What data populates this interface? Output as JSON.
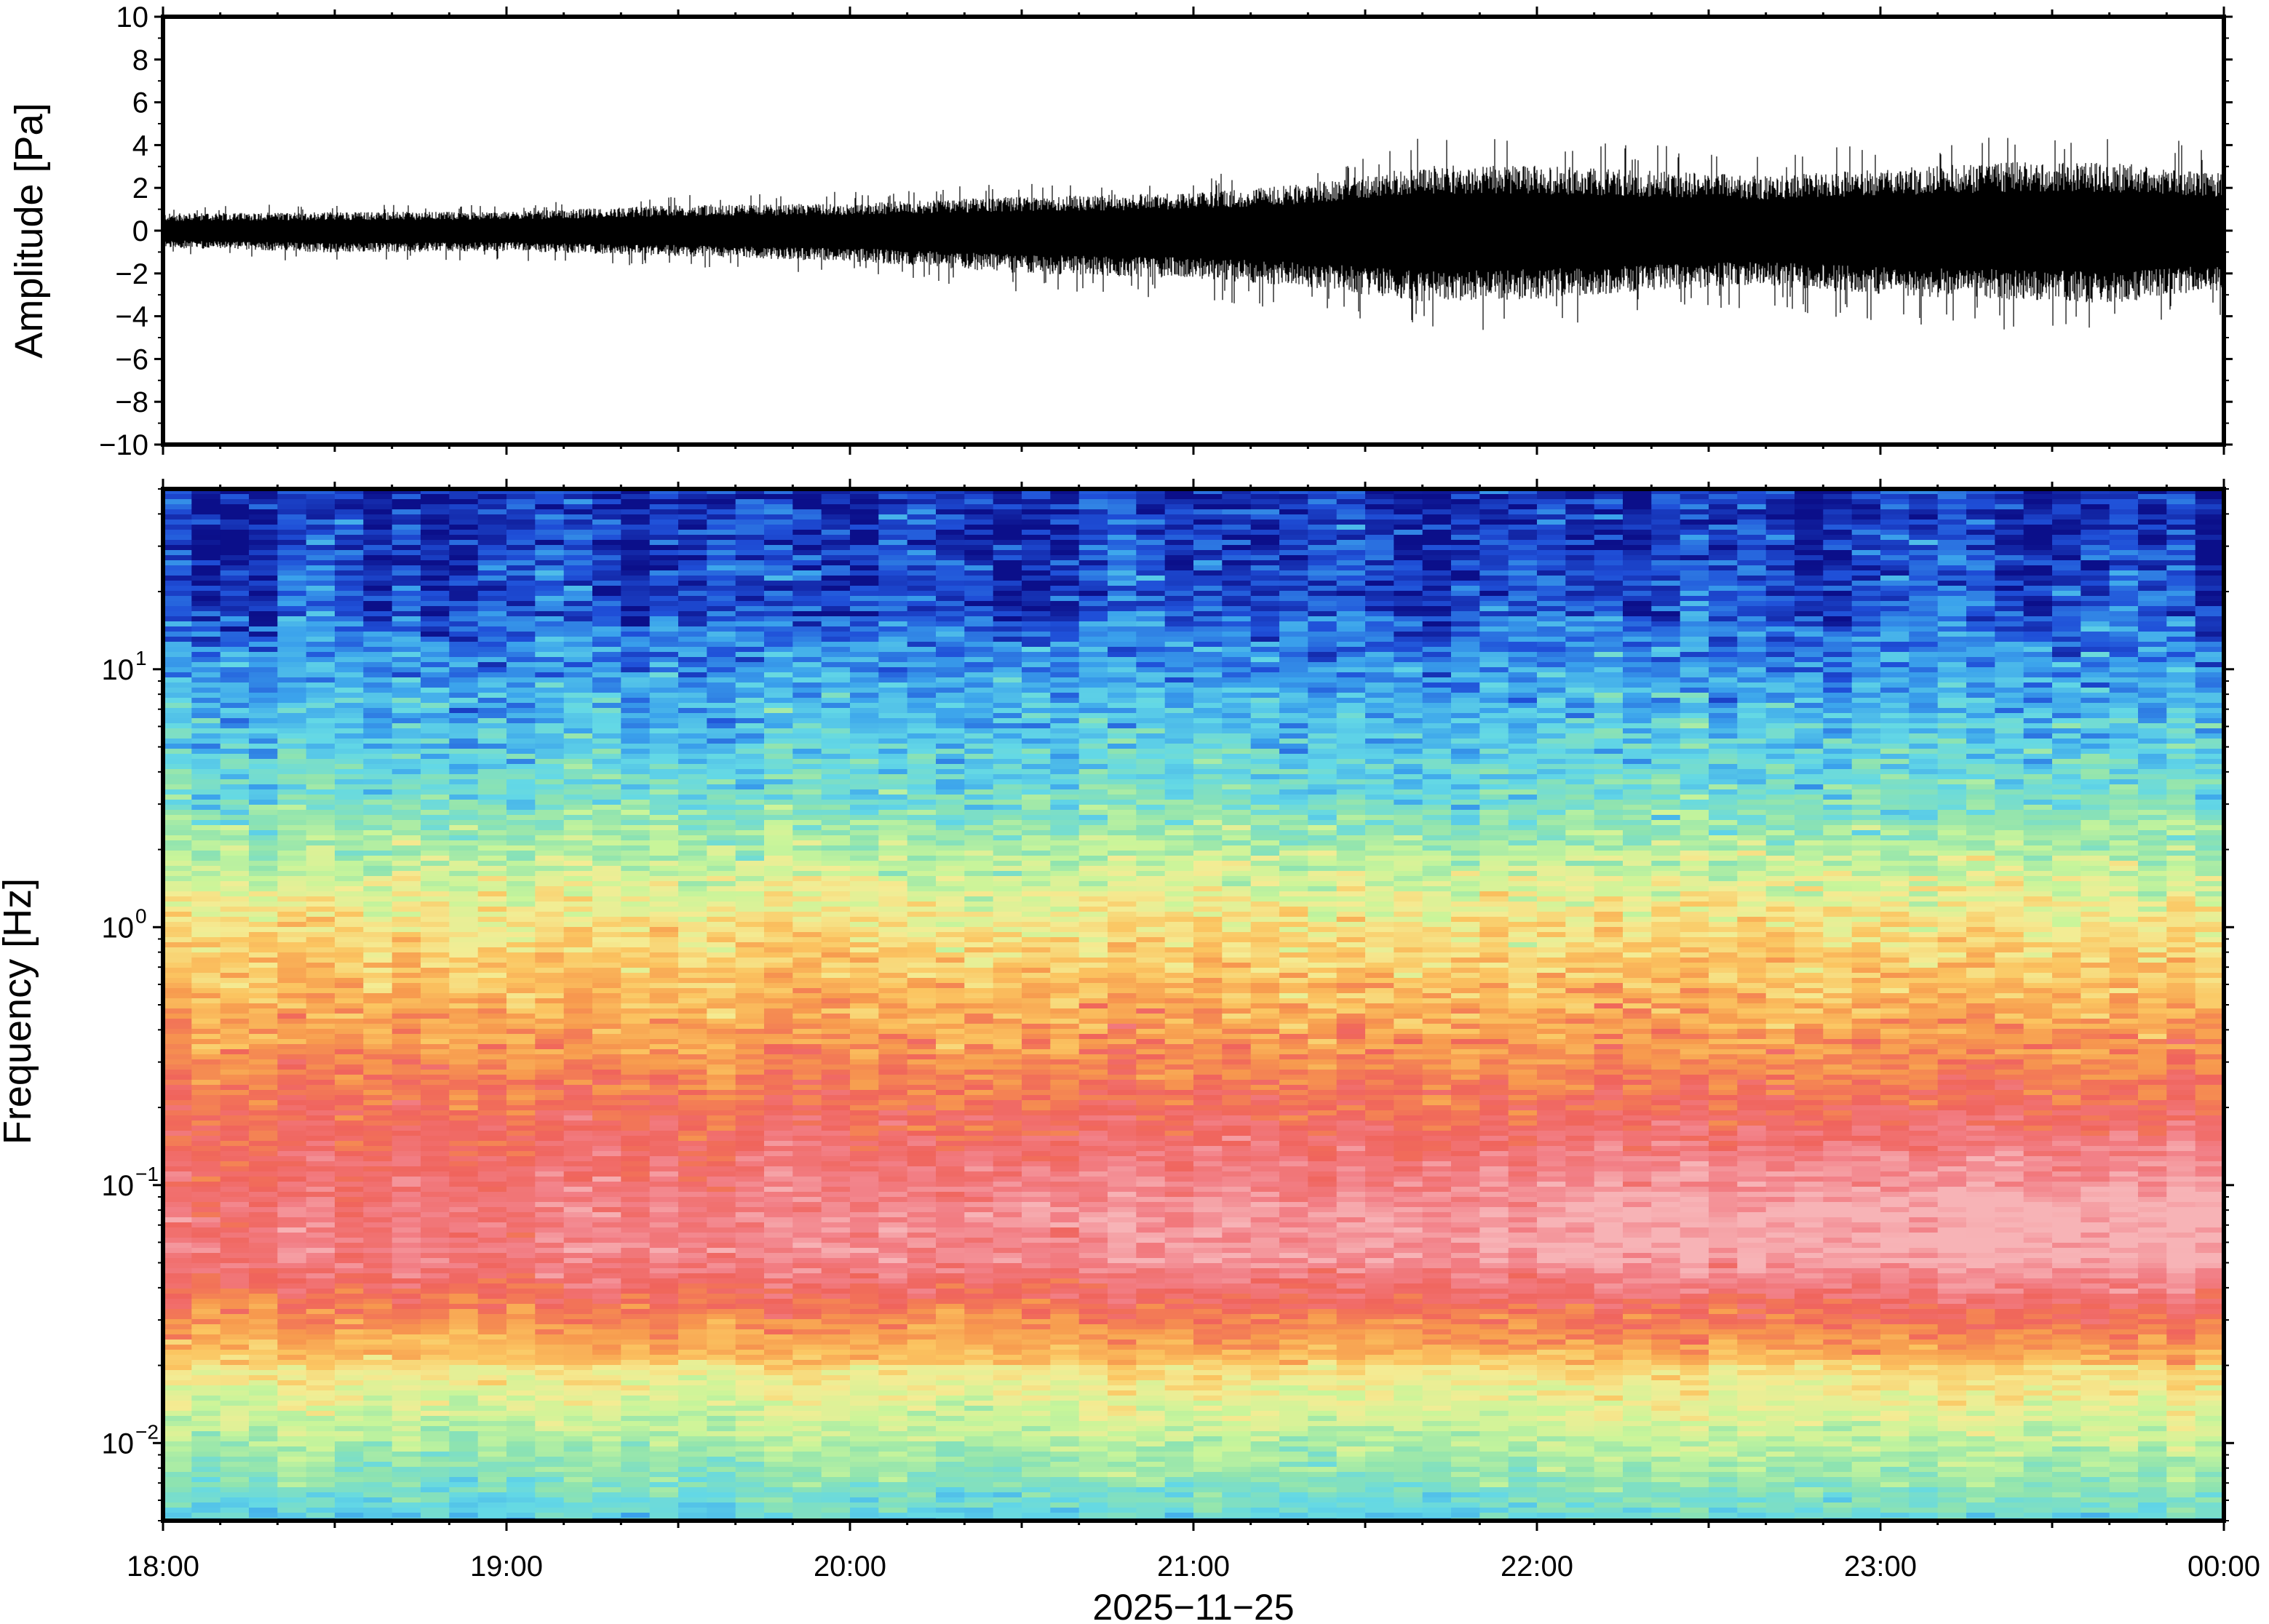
{
  "chart_data": [
    {
      "type": "line",
      "panel": "waveform",
      "title": "",
      "ylabel": "Amplitude [Pa]",
      "ylim": [
        -10,
        10
      ],
      "yticks": [
        -10,
        -8,
        -6,
        -4,
        -2,
        0,
        2,
        4,
        6,
        8,
        10
      ],
      "ytick_labels": [
        "−10",
        "−8",
        "−6",
        "−4",
        "−2",
        "0",
        "2",
        "4",
        "6",
        "8",
        "10"
      ],
      "xlim": [
        "18:00",
        "00:00"
      ],
      "grid": false,
      "color": "#000000",
      "series": [
        {
          "x": [
            "18:00",
            "18:30",
            "19:00",
            "19:30",
            "20:00",
            "20:30",
            "21:00",
            "21:20",
            "21:40",
            "22:00",
            "22:20",
            "22:40",
            "23:00",
            "23:20",
            "23:40",
            "00:00"
          ],
          "envelope_max": [
            1.0,
            1.1,
            1.1,
            1.5,
            1.6,
            2.0,
            2.2,
            2.8,
            3.8,
            3.8,
            3.5,
            3.2,
            3.6,
            4.0,
            4.0,
            3.5
          ],
          "envelope_min": [
            -1.0,
            -1.3,
            -1.2,
            -1.5,
            -1.8,
            -2.5,
            -2.8,
            -3.3,
            -4.2,
            -4.0,
            -3.5,
            -3.2,
            -3.8,
            -4.0,
            -4.3,
            -3.5
          ],
          "peak_max": 4.5,
          "peak_min": -4.8
        }
      ]
    },
    {
      "type": "heatmap",
      "panel": "spectrogram",
      "title": "",
      "ylabel": "Frequency [Hz]",
      "xlabel": "2025−11−25",
      "yscale": "log",
      "ylim": [
        0.005,
        50
      ],
      "yticks": [
        0.01,
        0.1,
        1,
        10
      ],
      "ytick_labels": [
        {
          "base": "10",
          "exp": "−2"
        },
        {
          "base": "10",
          "exp": "−1"
        },
        {
          "base": "10",
          "exp": "0"
        },
        {
          "base": "10",
          "exp": "1"
        }
      ],
      "xlim": [
        "18:00",
        "00:00"
      ],
      "xtick_labels": [
        "18:00",
        "19:00",
        "20:00",
        "21:00",
        "22:00",
        "23:00",
        "00:00"
      ],
      "grid": false,
      "colormap": [
        "#0b0f8a",
        "#1f4fd8",
        "#3ba3ec",
        "#63d8e6",
        "#8ee3b0",
        "#c9f59a",
        "#f4ec94",
        "#fbc561",
        "#f79a4e",
        "#f0645c",
        "#f27f86",
        "#f7b3b6"
      ],
      "power_profile_by_hour": [
        {
          "time": "18:00",
          "low_freq_band": "cyan-green",
          "mid_freq_band": "red-orange",
          "high_freq_band": "dark blue"
        },
        {
          "time": "21:00",
          "low_freq_band": "green-yellow",
          "mid_freq_band": "red",
          "high_freq_band": "blue"
        },
        {
          "time": "22:00",
          "low_freq_band": "green",
          "mid_freq_band": "red-pink",
          "high_freq_band": "blue"
        },
        {
          "time": "23:30",
          "low_freq_band": "green",
          "mid_freq_band": "red-pink",
          "high_freq_band": "blue"
        }
      ]
    }
  ]
}
